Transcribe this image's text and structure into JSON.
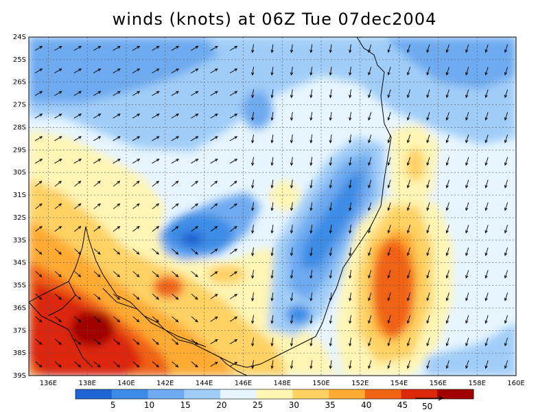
{
  "title": "winds (knots) at 06Z Tue 07dec2004",
  "lon_labels": [
    "136E",
    "138E",
    "140E",
    "142E",
    "144E",
    "146E",
    "148E",
    "150E",
    "152E",
    "154E",
    "156E",
    "158E",
    "160E"
  ],
  "lat_labels": [
    "24S",
    "25S",
    "26S",
    "27S",
    "28S",
    "29S",
    "30S",
    "31S",
    "32S",
    "33S",
    "34S",
    "35S",
    "36S",
    "37S",
    "38S",
    "39S"
  ],
  "lon_range": [
    135,
    160
  ],
  "lat_range": [
    -24,
    -39
  ],
  "colorbar": {
    "labels": [
      "5",
      "10",
      "15",
      "20",
      "25",
      "30",
      "35",
      "40",
      "45"
    ],
    "colors": [
      "#1e64d2",
      "#3c8ce6",
      "#6eaaf0",
      "#a0cdf8",
      "#e6f5ff",
      "#fff5b4",
      "#ffd264",
      "#ffaa32",
      "#f06414",
      "#dc280a",
      "#a00000"
    ]
  },
  "reference_vector_label": "50"
}
